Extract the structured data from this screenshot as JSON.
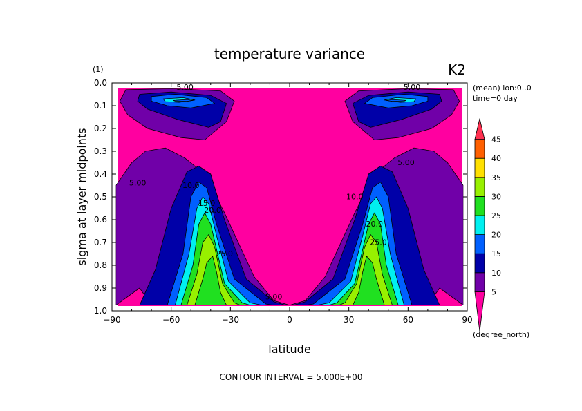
{
  "chart_data": {
    "type": "heatmap",
    "title": "temperature variance",
    "corner_label": "K2",
    "y_unit": "(1)",
    "x_unit": "(degree_north)",
    "xlabel": "latitude",
    "ylabel": "sigma at layer midpoints",
    "info_lines": [
      "(mean) lon:0..0",
      "time=0 day"
    ],
    "footer": "CONTOUR INTERVAL = 5.000E+00",
    "xlim": [
      -90,
      90
    ],
    "ylim": [
      1.0,
      0.0
    ],
    "x_ticks": [
      -90,
      -60,
      -30,
      0,
      30,
      60,
      90
    ],
    "x_tick_labels": [
      "−90",
      "−60",
      "−30",
      "0",
      "30",
      "60",
      "90"
    ],
    "y_ticks": [
      0.0,
      0.1,
      0.2,
      0.3,
      0.4,
      0.5,
      0.6,
      0.7,
      0.8,
      0.9,
      1.0
    ],
    "y_tick_labels": [
      "0.0",
      "0.1",
      "0.2",
      "0.3",
      "0.4",
      "0.5",
      "0.6",
      "0.7",
      "0.8",
      "0.9",
      "1.0"
    ],
    "contour_interval": 5,
    "colorbar": {
      "levels": [
        5,
        10,
        15,
        20,
        25,
        30,
        35,
        40,
        45
      ],
      "level_labels": [
        "5",
        "10",
        "15",
        "20",
        "25",
        "30",
        "35",
        "40",
        "45"
      ],
      "colors": [
        "#ff00a0",
        "#7000a8",
        "#0000a8",
        "#0060ff",
        "#00f0f0",
        "#20e020",
        "#98f000",
        "#ffe000",
        "#ff6000",
        "#ff3050"
      ]
    },
    "domain": {
      "lat": [
        -88,
        88
      ],
      "sigma": [
        0.025,
        0.975
      ]
    },
    "features": [
      {
        "type": "upper_maximum",
        "lat": -57,
        "sigma": 0.08,
        "peak_band": "20-25"
      },
      {
        "type": "upper_maximum",
        "lat": 57,
        "sigma": 0.08,
        "peak_band": "20-25"
      },
      {
        "type": "lower_maximum",
        "lat": -38,
        "sigma": 0.8,
        "peak_band": "30-35"
      },
      {
        "type": "lower_maximum",
        "lat": 38,
        "sigma": 0.8,
        "peak_band": "30-35"
      }
    ],
    "contour_labels": [
      {
        "text": "5.00",
        "lat": -53,
        "sigma": 0.03
      },
      {
        "text": "5.00",
        "lat": 62,
        "sigma": 0.03
      },
      {
        "text": "5.00",
        "lat": 59,
        "sigma": 0.36
      },
      {
        "text": "5.00",
        "lat": -77,
        "sigma": 0.45
      },
      {
        "text": "5.00",
        "lat": -8,
        "sigma": 0.95
      },
      {
        "text": "10.0",
        "lat": -50,
        "sigma": 0.46
      },
      {
        "text": "10.0",
        "lat": 33,
        "sigma": 0.51
      },
      {
        "text": "15.0",
        "lat": -42,
        "sigma": 0.54
      },
      {
        "text": "20.0",
        "lat": -39,
        "sigma": 0.57
      },
      {
        "text": "20.0",
        "lat": 43,
        "sigma": 0.63
      },
      {
        "text": "25.0",
        "lat": -33,
        "sigma": 0.76
      },
      {
        "text": "25.0",
        "lat": 45,
        "sigma": 0.71
      }
    ]
  }
}
